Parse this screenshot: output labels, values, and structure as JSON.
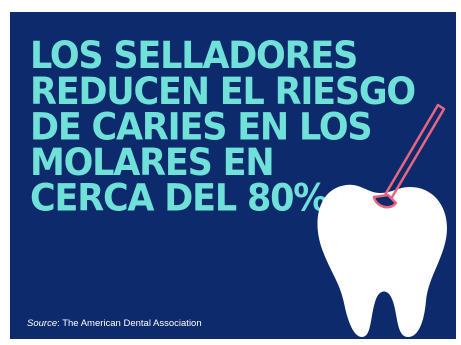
{
  "infographic": {
    "headline_lines": [
      "LOS SELLADORES",
      "REDUCEN EL RIESGO",
      "DE CARIES EN LOS",
      "MOLARES EN",
      "CERCA DEL 80%"
    ],
    "source_label": "Source",
    "source_text": ": The American Dental Association",
    "colors": {
      "background": "#0d2a6c",
      "headline": "#6fe1d8",
      "tooth": "#ffffff",
      "brush": "#e8667f"
    },
    "icons": [
      "tooth-icon",
      "brush-icon"
    ]
  }
}
